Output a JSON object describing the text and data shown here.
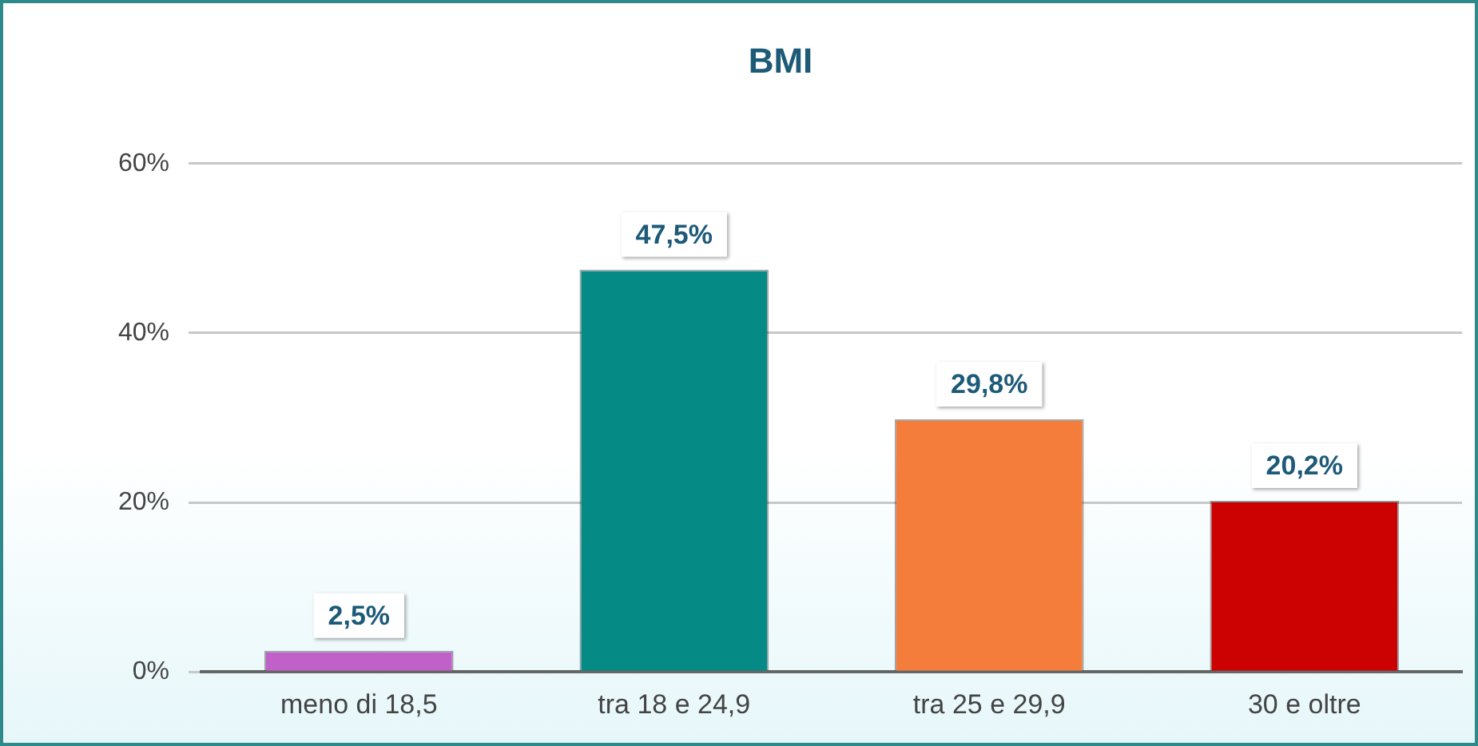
{
  "chart_data": {
    "type": "bar",
    "title": "BMI",
    "categories": [
      "meno di 18,5",
      "tra 18 e 24,9",
      "tra 25 e 29,9",
      "30 e oltre"
    ],
    "values": [
      2.5,
      47.5,
      29.8,
      20.2
    ],
    "colors": [
      "#c060c8",
      "#058a86",
      "#f57d3b",
      "#cc0202"
    ],
    "value_labels": [
      "2,5%",
      "47,5%",
      "29,8%",
      "20,2%"
    ],
    "ylim": [
      0,
      60
    ],
    "yticks": [
      {
        "value": 0,
        "label": "0%"
      },
      {
        "value": 20,
        "label": "20%"
      },
      {
        "value": 40,
        "label": "40%"
      },
      {
        "value": 60,
        "label": "60%"
      }
    ],
    "grid": "y",
    "legend": false
  }
}
